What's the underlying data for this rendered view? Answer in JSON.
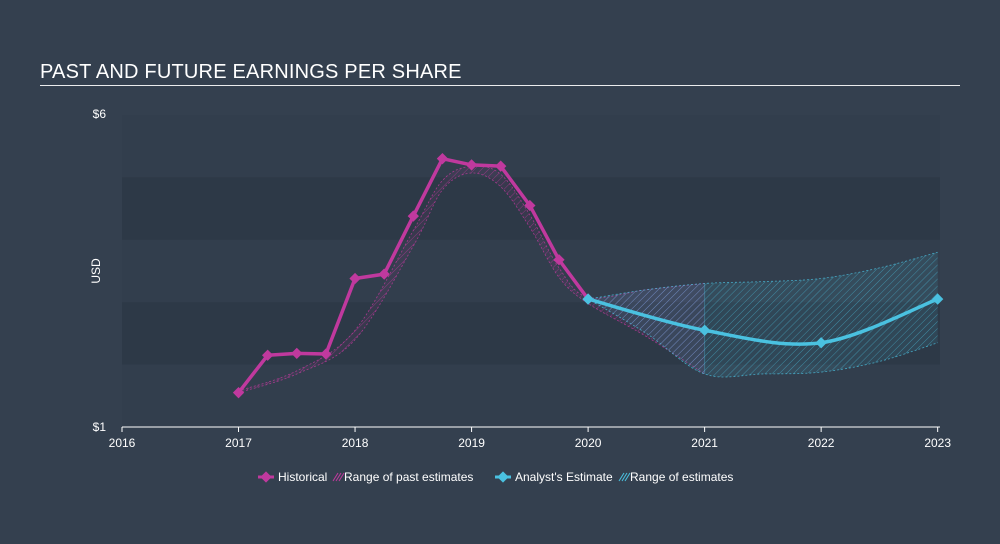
{
  "chart_data": {
    "type": "line",
    "title": "PAST AND FUTURE EARNINGS PER SHARE",
    "ylabel": "USD",
    "xlim": [
      2016,
      2023.02
    ],
    "ylim": [
      1,
      6
    ],
    "x_ticks": [
      "2016",
      "2017",
      "2018",
      "2019",
      "2020",
      "2021",
      "2022",
      "2023"
    ],
    "y_ticks": [
      "$1",
      "$6"
    ],
    "series": [
      {
        "name": "Historical",
        "color": "#c0399e",
        "x": [
          2017.0,
          2017.25,
          2017.5,
          2017.75,
          2018.0,
          2018.25,
          2018.5,
          2018.75,
          2019.0,
          2019.25,
          2019.5,
          2019.75,
          2020.0
        ],
        "y": [
          1.55,
          2.15,
          2.18,
          2.17,
          3.38,
          3.45,
          4.38,
          5.3,
          5.2,
          5.18,
          4.55,
          3.68,
          3.05
        ]
      },
      {
        "name": "Range of past estimates",
        "color": "#c0399e",
        "x": [
          2017.0,
          2017.5,
          2018.0,
          2018.5,
          2018.75,
          2019.0,
          2019.25,
          2019.5,
          2019.75,
          2020.0,
          2020.5,
          2021.0
        ],
        "y_low": [
          1.55,
          1.85,
          2.4,
          3.9,
          4.8,
          5.07,
          4.85,
          4.2,
          3.4,
          2.98,
          2.45,
          1.85
        ],
        "y_high": [
          1.58,
          1.9,
          2.55,
          4.15,
          4.95,
          5.18,
          5.05,
          4.4,
          3.55,
          3.08,
          3.2,
          3.3
        ]
      },
      {
        "name": "Analyst's Estimate",
        "color": "#4ac1e0",
        "x": [
          2020.0,
          2021.0,
          2022.0,
          2023.0
        ],
        "y": [
          3.05,
          2.55,
          2.35,
          3.05
        ]
      },
      {
        "name": "Range of estimates",
        "color": "#4ac1e0",
        "x": [
          2020.0,
          2020.5,
          2021.0,
          2021.5,
          2022.0,
          2022.5,
          2023.0
        ],
        "y_low": [
          3.05,
          2.5,
          1.85,
          1.85,
          1.88,
          2.05,
          2.35
        ],
        "y_high": [
          3.05,
          3.2,
          3.3,
          3.33,
          3.38,
          3.55,
          3.8
        ]
      }
    ],
    "legend": {
      "placement": "bottom-center",
      "items": [
        "Historical",
        "Range of past estimates",
        "Analyst's Estimate",
        "Range of estimates"
      ]
    }
  }
}
